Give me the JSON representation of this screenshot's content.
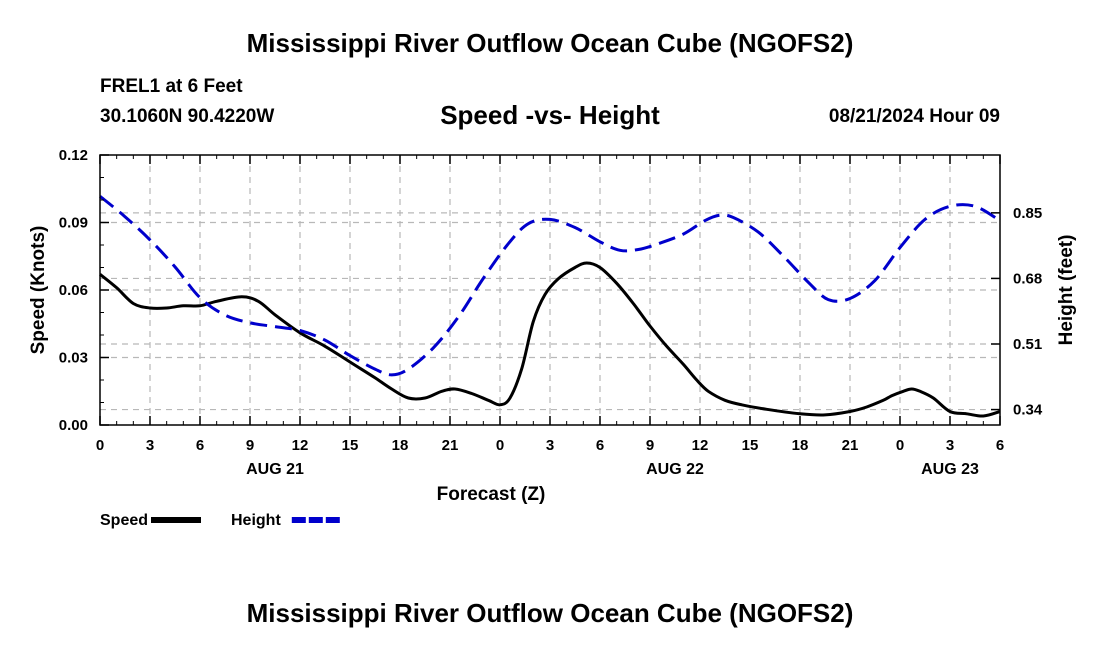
{
  "header": {
    "title": "Mississippi River Outflow Ocean Cube (NGOFS2)",
    "station": "FREL1 at 6 Feet",
    "coords": "30.1060N  90.4220W",
    "subtitle": "Speed -vs- Height",
    "run_time": "08/21/2024 Hour 09"
  },
  "footer": {
    "title": "Mississippi River Outflow Ocean Cube (NGOFS2)"
  },
  "chart_data": {
    "type": "line",
    "title": "Speed -vs- Height",
    "xlabel": "Forecast (Z)",
    "ylabel": "Speed (Knots)",
    "y2label": "Height (feet)",
    "x_range_hours": [
      0,
      54
    ],
    "x_tick_step_hours": 3,
    "x_tick_labels": [
      "0",
      "3",
      "6",
      "9",
      "12",
      "15",
      "18",
      "21",
      "0",
      "3",
      "6",
      "9",
      "12",
      "15",
      "18",
      "21",
      "0",
      "3",
      "6"
    ],
    "date_labels": [
      {
        "hour": 10.5,
        "label": "AUG 21"
      },
      {
        "hour": 34.5,
        "label": "AUG 22"
      },
      {
        "hour": 51,
        "label": "AUG 23"
      }
    ],
    "ylim": [
      0,
      0.12
    ],
    "y_ticks": [
      "0.00",
      "0.03",
      "0.06",
      "0.09",
      "0.12"
    ],
    "y2lim": [
      0.3,
      1.0
    ],
    "y2_ticks": [
      "0.34",
      "0.51",
      "0.68",
      "0.85"
    ],
    "grid": true,
    "legend": "bottom-left",
    "series": [
      {
        "name": "Speed",
        "axis": "left",
        "color": "#000000",
        "dashed": false,
        "points": [
          [
            0,
            0.067
          ],
          [
            1,
            0.061
          ],
          [
            2,
            0.054
          ],
          [
            3,
            0.052
          ],
          [
            4,
            0.052
          ],
          [
            5,
            0.053
          ],
          [
            6,
            0.053
          ],
          [
            7,
            0.055
          ],
          [
            8.5,
            0.057
          ],
          [
            9.5,
            0.055
          ],
          [
            10.5,
            0.049
          ],
          [
            12,
            0.041
          ],
          [
            13.5,
            0.035
          ],
          [
            15,
            0.028
          ],
          [
            16.5,
            0.021
          ],
          [
            17.5,
            0.016
          ],
          [
            18.5,
            0.012
          ],
          [
            19.5,
            0.012
          ],
          [
            20.5,
            0.015
          ],
          [
            21.3,
            0.016
          ],
          [
            22.3,
            0.014
          ],
          [
            23.3,
            0.011
          ],
          [
            24,
            0.009
          ],
          [
            24.6,
            0.012
          ],
          [
            25.3,
            0.025
          ],
          [
            26,
            0.046
          ],
          [
            26.7,
            0.058
          ],
          [
            27.5,
            0.065
          ],
          [
            28.5,
            0.07
          ],
          [
            29.2,
            0.072
          ],
          [
            30,
            0.07
          ],
          [
            31,
            0.063
          ],
          [
            32,
            0.054
          ],
          [
            33,
            0.044
          ],
          [
            34,
            0.035
          ],
          [
            35,
            0.027
          ],
          [
            35.8,
            0.02
          ],
          [
            36.5,
            0.015
          ],
          [
            37.5,
            0.011
          ],
          [
            38.5,
            0.009
          ],
          [
            40,
            0.007
          ],
          [
            42,
            0.005
          ],
          [
            43.5,
            0.0045
          ],
          [
            45,
            0.006
          ],
          [
            46,
            0.008
          ],
          [
            47,
            0.011
          ],
          [
            47.5,
            0.013
          ],
          [
            48.2,
            0.015
          ],
          [
            48.7,
            0.016
          ],
          [
            49.2,
            0.015
          ],
          [
            50,
            0.012
          ],
          [
            51,
            0.006
          ],
          [
            52,
            0.005
          ],
          [
            53,
            0.004
          ],
          [
            54,
            0.006
          ]
        ]
      },
      {
        "name": "Height",
        "axis": "right",
        "color": "#0000cc",
        "dashed": true,
        "points": [
          [
            0,
            0.893
          ],
          [
            1.5,
            0.84
          ],
          [
            3,
            0.78
          ],
          [
            4.5,
            0.71
          ],
          [
            6,
            0.63
          ],
          [
            7.5,
            0.585
          ],
          [
            9,
            0.565
          ],
          [
            10.5,
            0.555
          ],
          [
            12,
            0.545
          ],
          [
            13.5,
            0.52
          ],
          [
            15,
            0.48
          ],
          [
            16.5,
            0.445
          ],
          [
            17.5,
            0.43
          ],
          [
            18.5,
            0.445
          ],
          [
            20,
            0.5
          ],
          [
            21.5,
            0.58
          ],
          [
            23,
            0.68
          ],
          [
            24.5,
            0.77
          ],
          [
            25.7,
            0.822
          ],
          [
            27,
            0.833
          ],
          [
            28.5,
            0.812
          ],
          [
            30,
            0.775
          ],
          [
            31.2,
            0.753
          ],
          [
            32.3,
            0.755
          ],
          [
            33.5,
            0.77
          ],
          [
            35,
            0.795
          ],
          [
            36.3,
            0.83
          ],
          [
            37.2,
            0.844
          ],
          [
            38,
            0.838
          ],
          [
            39.5,
            0.8
          ],
          [
            41,
            0.738
          ],
          [
            42.5,
            0.67
          ],
          [
            43.7,
            0.625
          ],
          [
            45,
            0.628
          ],
          [
            46.5,
            0.675
          ],
          [
            48,
            0.76
          ],
          [
            49.5,
            0.833
          ],
          [
            51,
            0.867
          ],
          [
            52.5,
            0.867
          ],
          [
            54,
            0.83
          ]
        ]
      }
    ]
  }
}
